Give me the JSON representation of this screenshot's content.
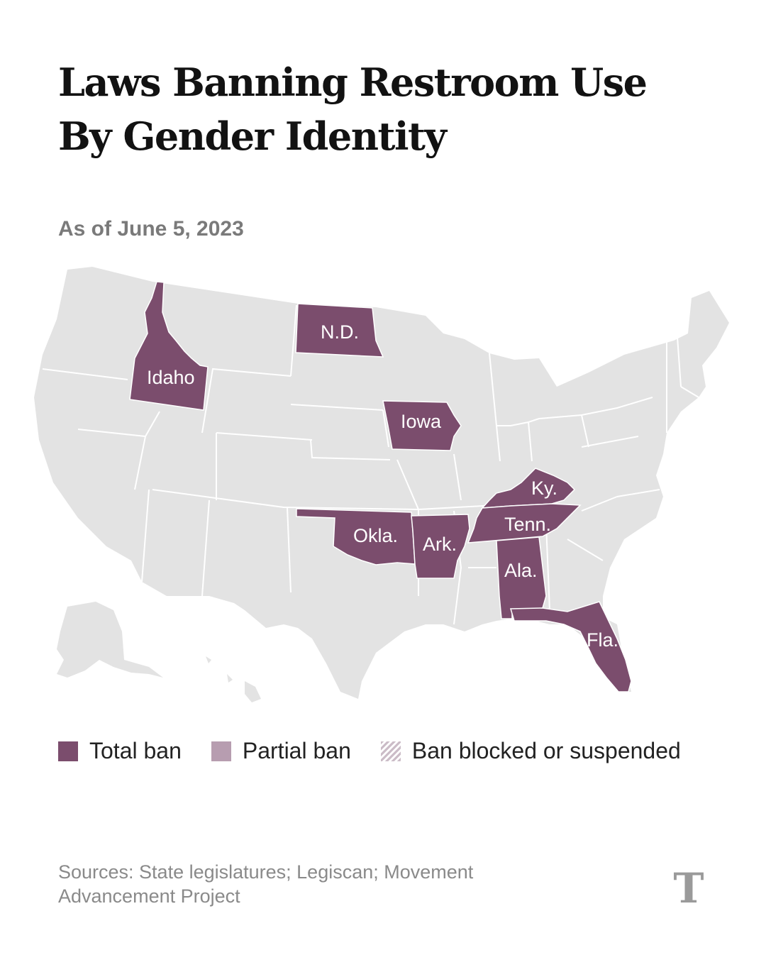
{
  "title": "Laws Banning Restroom Use By Gender Identity",
  "subtitle": "As of June 5, 2023",
  "legend": {
    "total": "Total ban",
    "partial": "Partial ban",
    "blocked": "Ban blocked or suspended"
  },
  "source": "Sources: State legislatures; Legiscan; Movement Advancement Project",
  "logo": "T",
  "colors": {
    "land": "#e3e3e3",
    "border": "#ffffff",
    "total_ban": "#7b4d6d",
    "partial_ban": "#b79db0"
  },
  "states": [
    {
      "abbr": "Idaho",
      "status": "total"
    },
    {
      "abbr": "N.D.",
      "status": "total"
    },
    {
      "abbr": "Iowa",
      "status": "total"
    },
    {
      "abbr": "Ky.",
      "status": "total"
    },
    {
      "abbr": "Tenn.",
      "status": "total"
    },
    {
      "abbr": "Okla.",
      "status": "total"
    },
    {
      "abbr": "Ark.",
      "status": "total"
    },
    {
      "abbr": "Ala.",
      "status": "total"
    },
    {
      "abbr": "Fla.",
      "status": "total"
    }
  ]
}
